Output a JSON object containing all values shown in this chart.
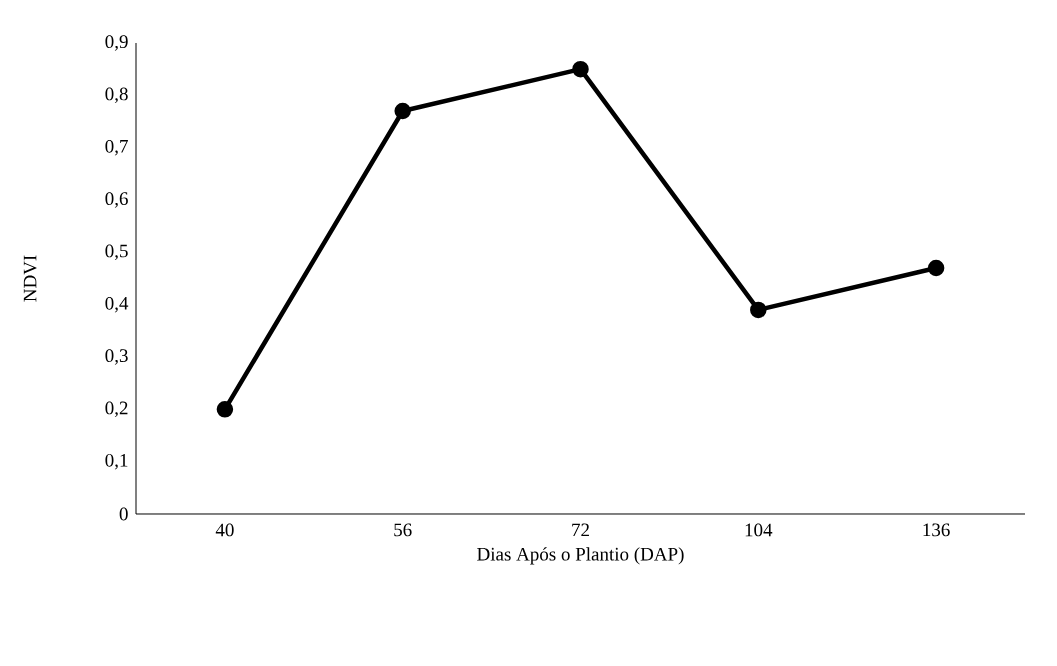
{
  "chart_data": {
    "type": "line",
    "xlabel": "Dias Após o Plantio (DAP)",
    "ylabel": "NDVI",
    "categories": [
      "40",
      "56",
      "72",
      "104",
      "136"
    ],
    "series": [
      {
        "color": "#000000",
        "values": [
          0.2,
          0.77,
          0.85,
          0.39,
          0.47
        ]
      }
    ],
    "ylim": [
      0,
      0.9
    ],
    "yticks": [
      0,
      {
        "value": 0.1,
        "label": "0,1"
      },
      {
        "value": 0.2,
        "label": "0,2"
      },
      {
        "value": 0.3,
        "label": "0,3"
      },
      {
        "value": 0.4,
        "label": "0,4"
      },
      {
        "value": 0.5,
        "label": "0,5"
      },
      {
        "value": 0.6,
        "label": "0,6"
      },
      {
        "value": 0.7,
        "label": "0,7"
      },
      {
        "value": 0.8,
        "label": "0,8"
      },
      {
        "value": 0.9,
        "label": "0,9"
      }
    ],
    "marker": "circle",
    "line_style": "solid"
  }
}
